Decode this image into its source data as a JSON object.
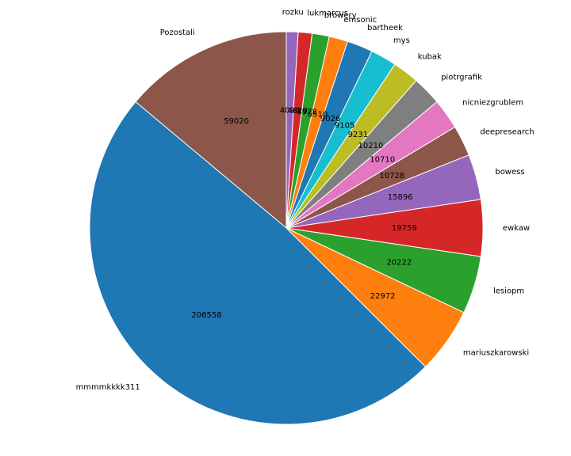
{
  "chart_data": {
    "type": "pie",
    "title": "",
    "start_angle_deg": 90,
    "direction": "counterclockwise",
    "slices": [
      {
        "label": "Pozostali",
        "value": 59020,
        "color": "#8c564b"
      },
      {
        "label": "mmmmkkkk311",
        "value": 206558,
        "color": "#1f77b4"
      },
      {
        "label": "mariuszkarowski",
        "value": 22972,
        "color": "#ff7f0e"
      },
      {
        "label": "lesiopm",
        "value": 20222,
        "color": "#2ca02c"
      },
      {
        "label": "ewkaw",
        "value": 19759,
        "color": "#d62728"
      },
      {
        "label": "bowess",
        "value": 15896,
        "color": "#9467bd"
      },
      {
        "label": "deepresearch",
        "value": 10728,
        "color": "#8c564b"
      },
      {
        "label": "nicniezgrublem",
        "value": 10710,
        "color": "#e377c2"
      },
      {
        "label": "piotrgrafik",
        "value": 10210,
        "color": "#7f7f7f"
      },
      {
        "label": "kubak",
        "value": 9231,
        "color": "#bcbd22"
      },
      {
        "label": "mys",
        "value": 9105,
        "color": "#17becf"
      },
      {
        "label": "bartheek",
        "value": 9026,
        "color": "#1f77b4"
      },
      {
        "label": "emsonic",
        "value": 6510,
        "color": "#ff7f0e"
      },
      {
        "label": "browery",
        "value": 5978,
        "color": "#2ca02c"
      },
      {
        "label": "lukmarcus",
        "value": 4829,
        "color": "#d62728"
      },
      {
        "label": "rozku",
        "value": 4090,
        "color": "#9467bd"
      }
    ]
  }
}
